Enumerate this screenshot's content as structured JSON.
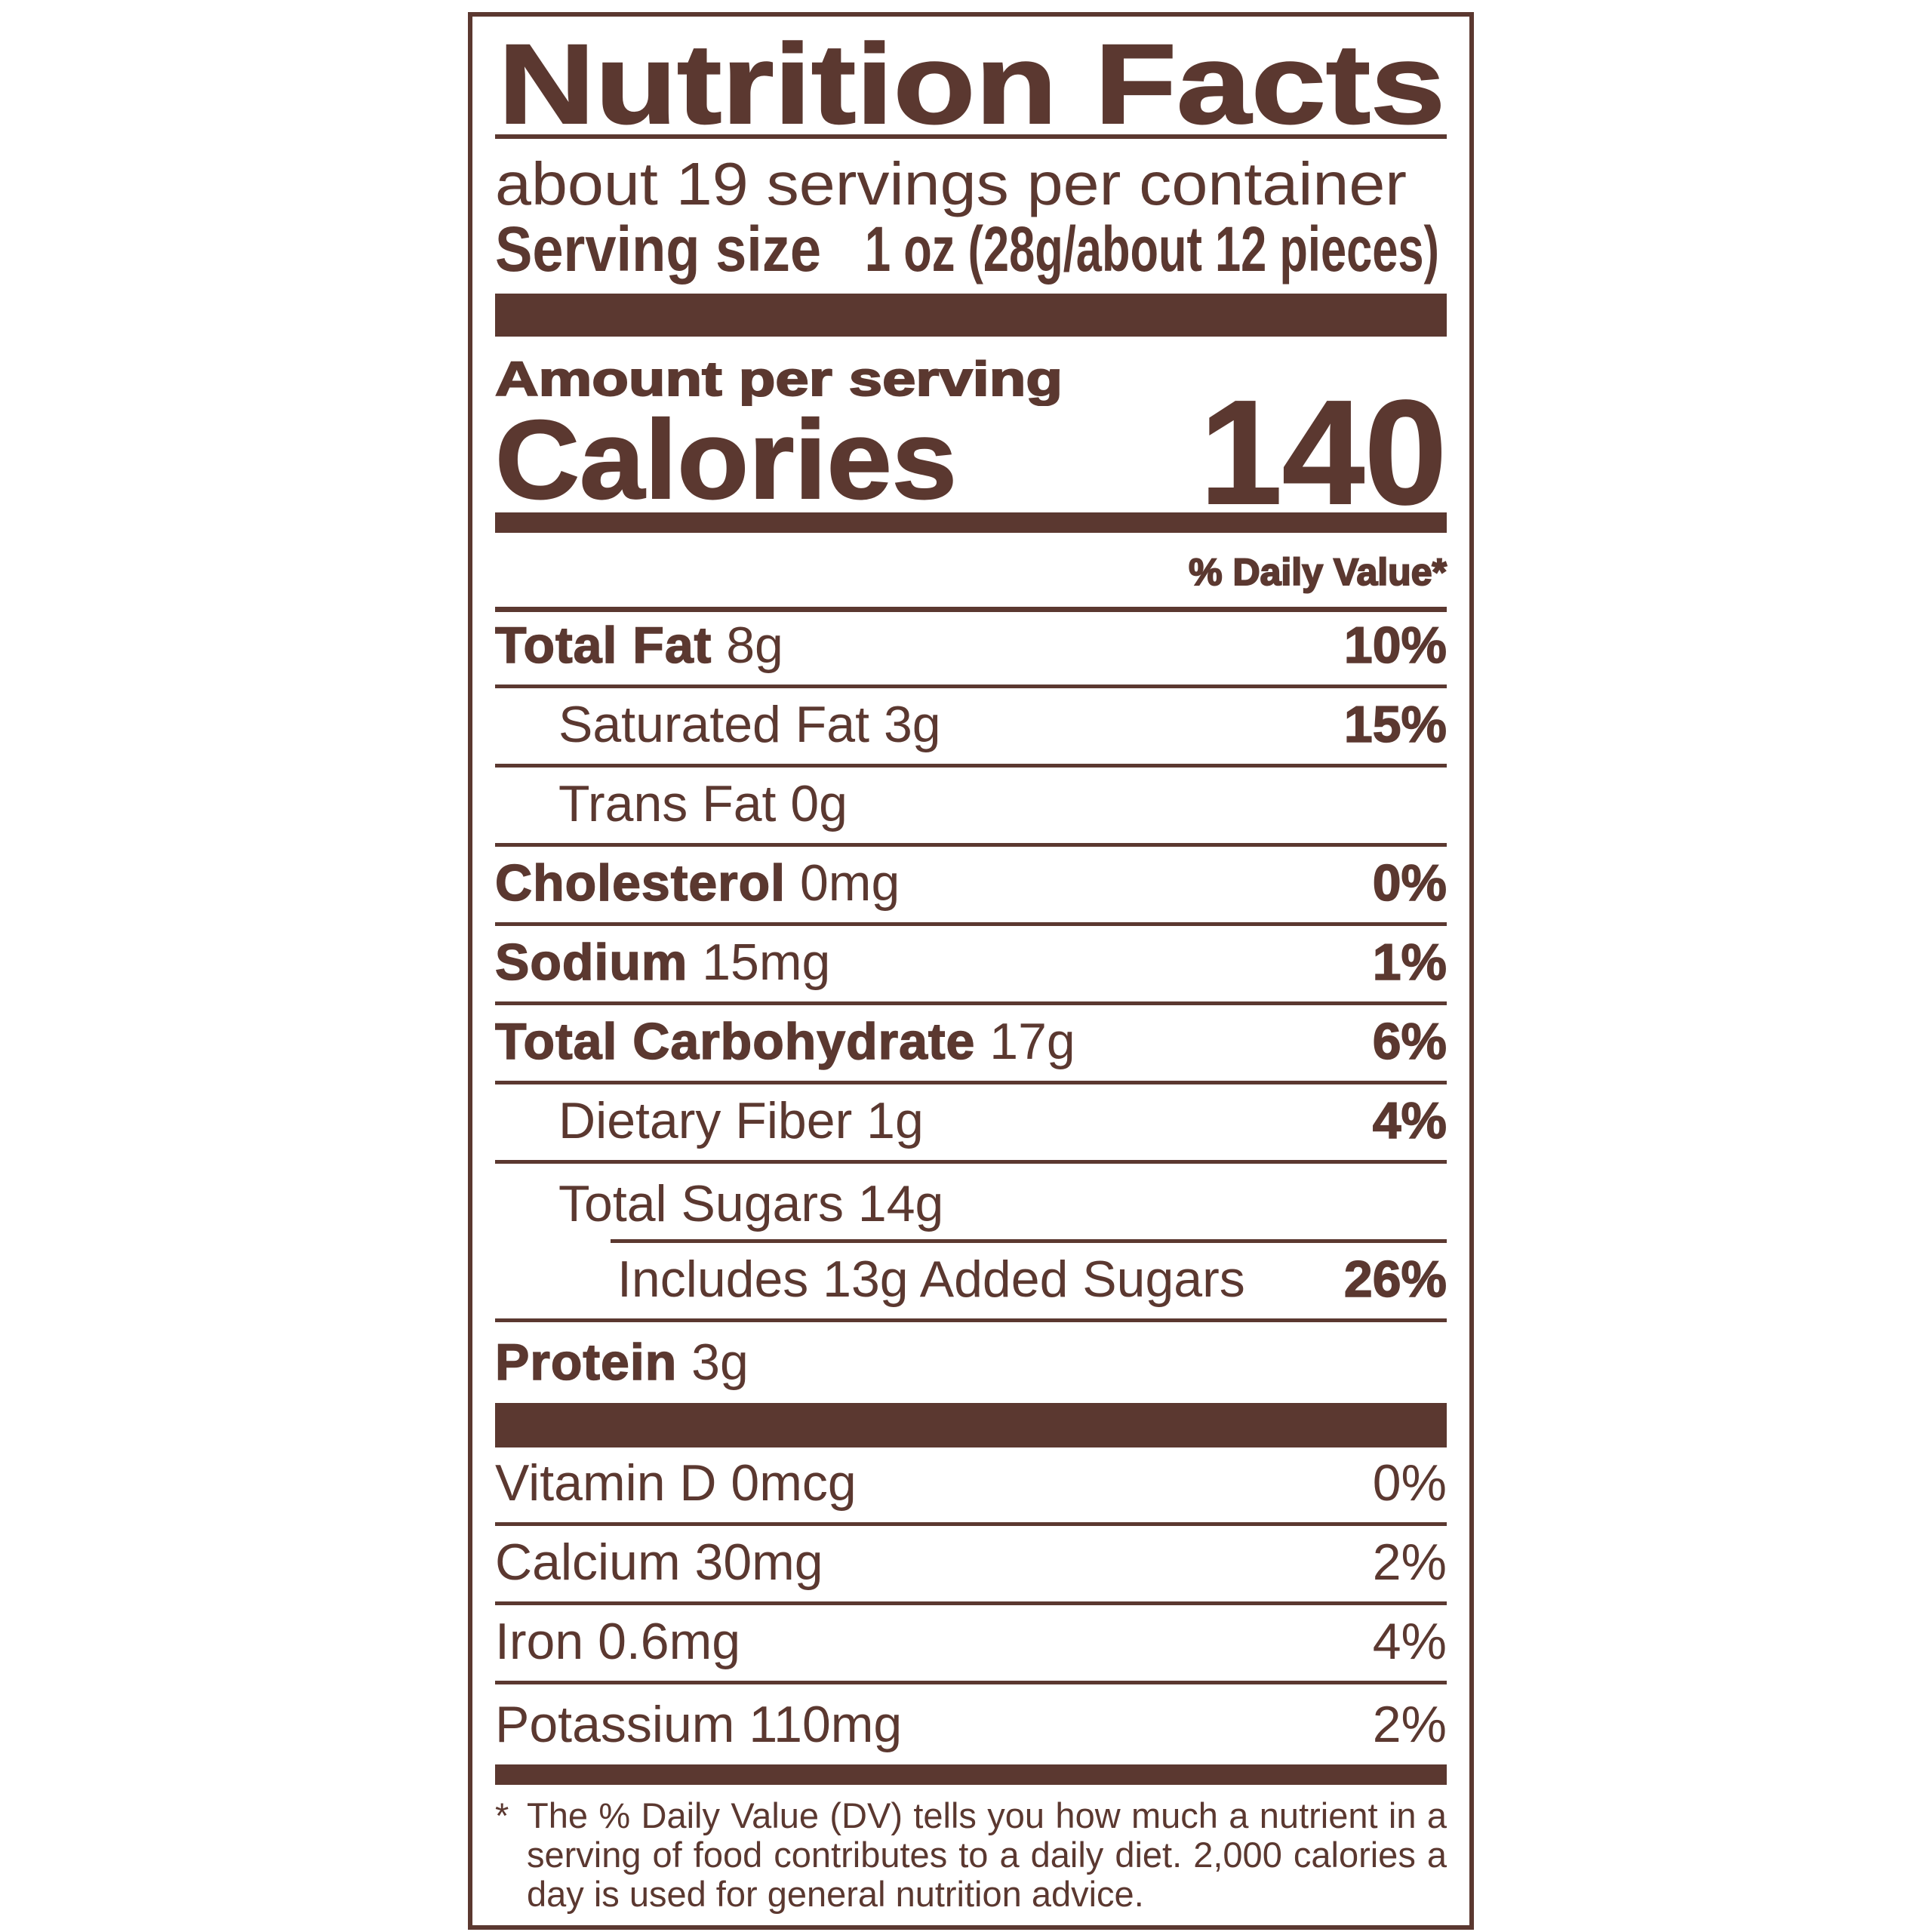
{
  "title": "Nutrition Facts",
  "servings_per_container": "about 19 servings per container",
  "serving_size": {
    "label": "Serving size",
    "value": "1 oz (28g/about 12 pieces)"
  },
  "amount_per_serving": "Amount per serving",
  "calories": {
    "label": "Calories",
    "value": "140"
  },
  "daily_value_header": "% Daily Value*",
  "nutrients": [
    {
      "name": "Total Fat",
      "amount": "8g",
      "dv": "10%"
    },
    {
      "name": "Saturated Fat",
      "amount": "3g",
      "dv": "15%"
    },
    {
      "name": "Trans Fat",
      "amount": "0g",
      "dv": ""
    },
    {
      "name": "Cholesterol",
      "amount": "0mg",
      "dv": "0%"
    },
    {
      "name": "Sodium",
      "amount": "15mg",
      "dv": "1%"
    },
    {
      "name": "Total Carbohydrate",
      "amount": "17g",
      "dv": "6%"
    },
    {
      "name": "Dietary Fiber",
      "amount": "1g",
      "dv": "4%"
    },
    {
      "name": "Total Sugars",
      "amount": "14g",
      "dv": ""
    },
    {
      "name": "Includes 13g Added Sugars",
      "amount": "",
      "dv": "26%"
    },
    {
      "name": "Protein",
      "amount": "3g",
      "dv": ""
    }
  ],
  "vitamins": [
    {
      "name": "Vitamin D 0mcg",
      "dv": "0%"
    },
    {
      "name": "Calcium 30mg",
      "dv": "2%"
    },
    {
      "name": "Iron 0.6mg",
      "dv": "4%"
    },
    {
      "name": "Potassium 110mg",
      "dv": "2%"
    }
  ],
  "footnote": {
    "marker": "*",
    "text": "The % Daily Value (DV) tells you how much a nutrient in a serving of food contributes to a daily diet. 2,000 calories a day is used for general nutrition advice."
  },
  "colors": {
    "ink": "#5b3830",
    "background": "#ffffff"
  }
}
